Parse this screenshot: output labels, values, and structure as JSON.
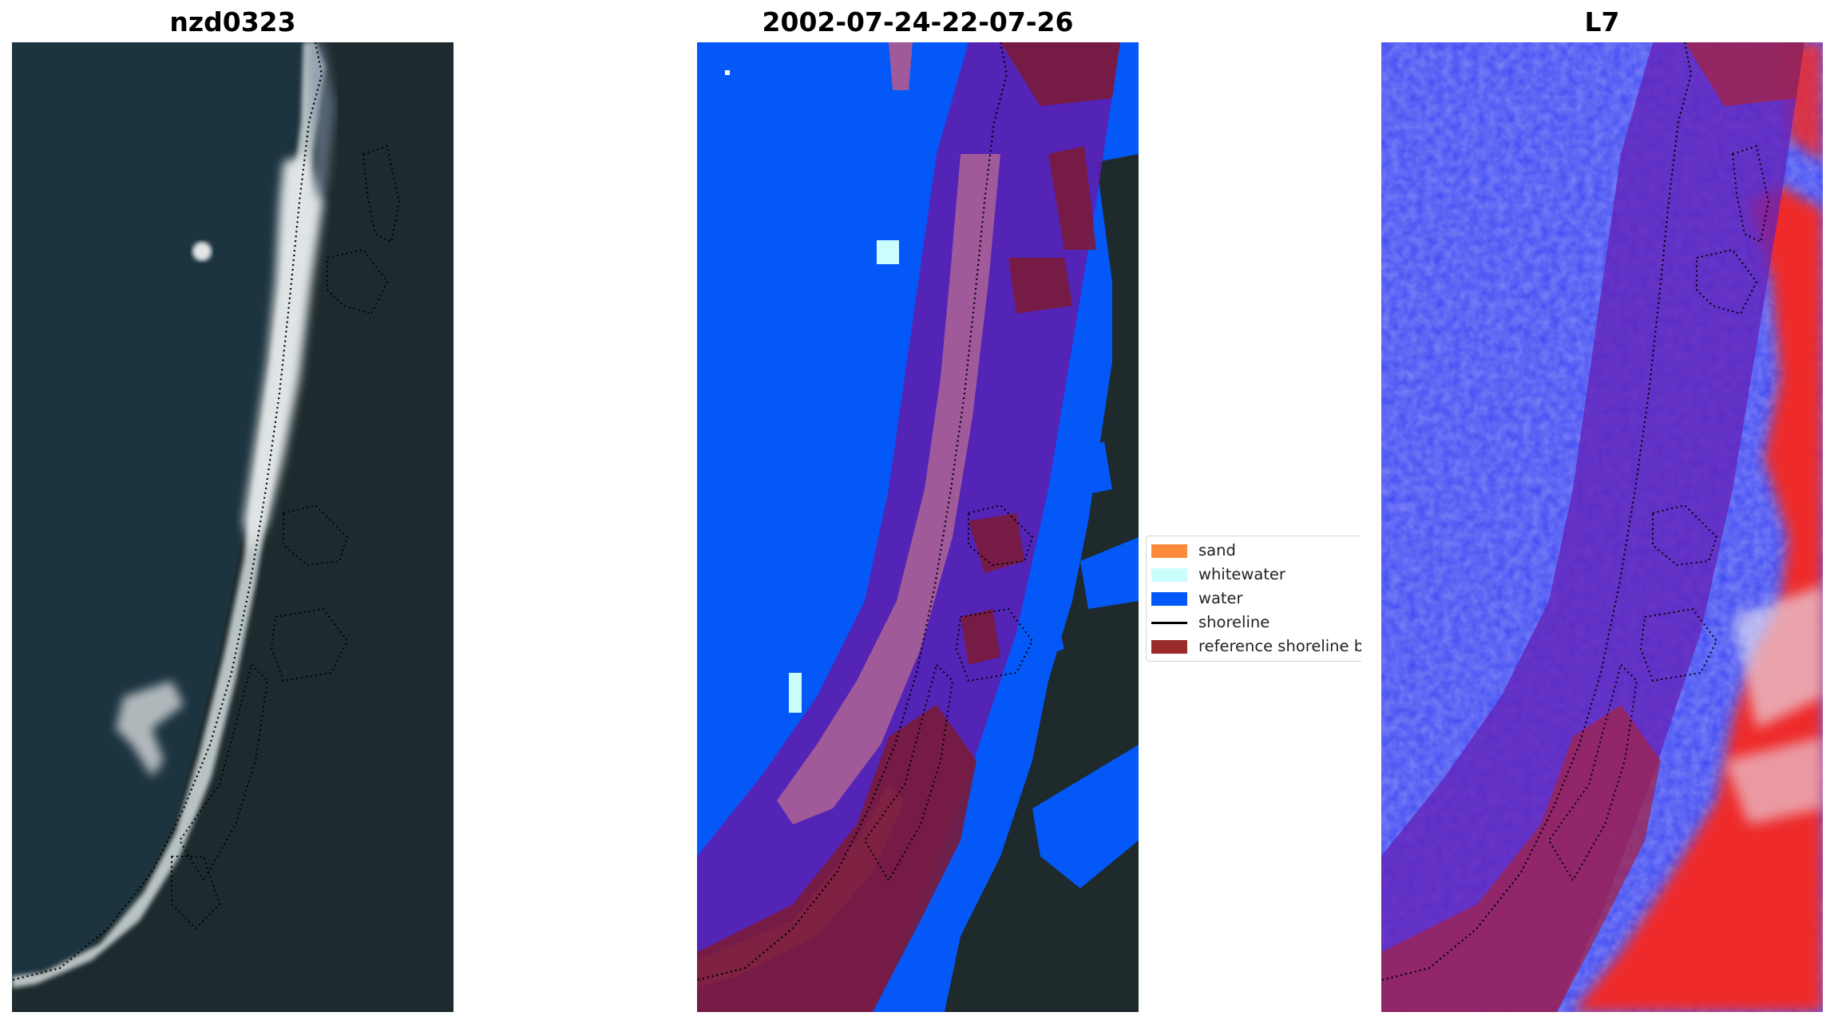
{
  "panels": [
    {
      "title": "nzd0323"
    },
    {
      "title": "2002-07-24-22-07-26"
    },
    {
      "title": "L7"
    }
  ],
  "legend": {
    "items": [
      {
        "label": "sand",
        "color": "#fb8a3a",
        "type": "patch"
      },
      {
        "label": "whitewater",
        "color": "#ccfdfd",
        "type": "patch"
      },
      {
        "label": "water",
        "color": "#0458f7",
        "type": "patch"
      },
      {
        "label": "shoreline",
        "color": "#000000",
        "type": "line"
      },
      {
        "label": "reference shoreline bu",
        "color": "#9b2b2b",
        "type": "patch"
      }
    ]
  },
  "colors": {
    "ocean_dark": "#1d3440",
    "land_dark": "#1e2a2c",
    "whitewater_rgb": "#dcdfe0",
    "buffer_overlay": "#6b1fb5",
    "ref_buffer": "#8b1f3a",
    "index_blue": "#2a3cf0",
    "index_red": "#ef1d1d"
  }
}
